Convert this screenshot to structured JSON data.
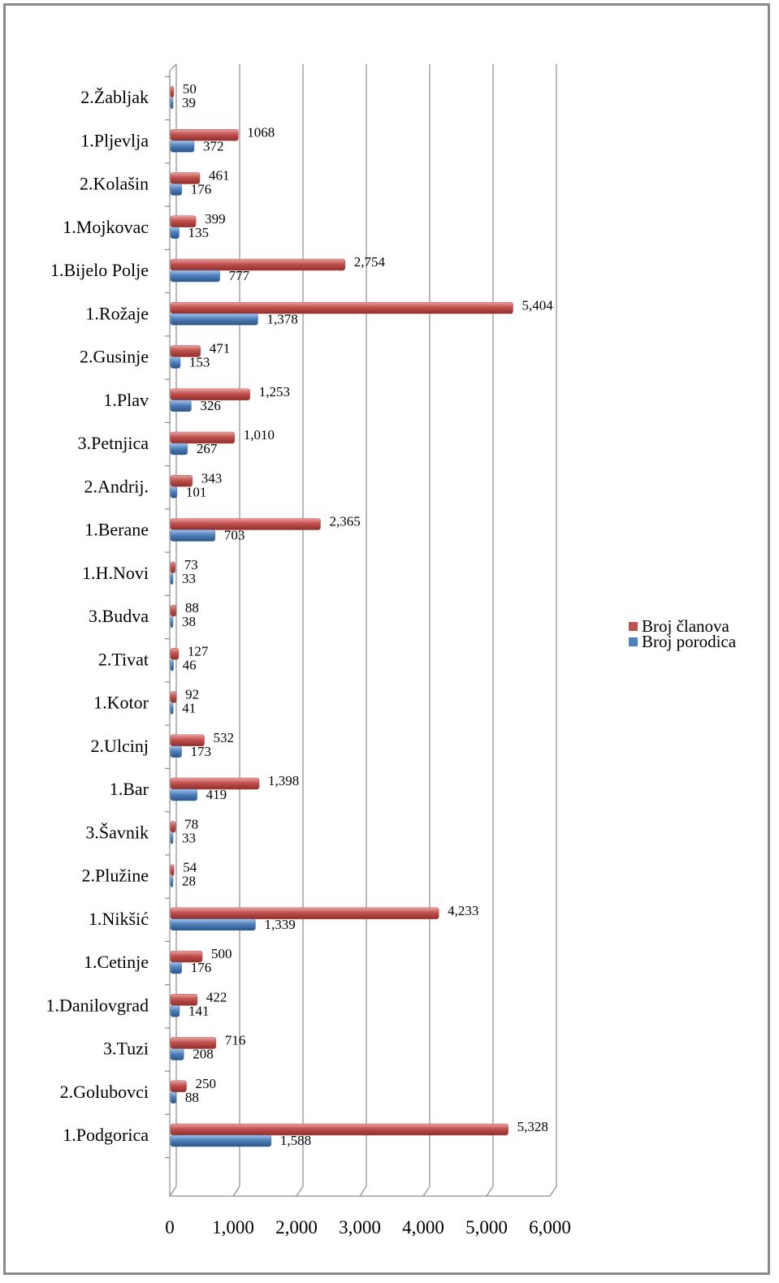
{
  "chart_data": {
    "type": "bar",
    "orientation": "horizontal",
    "categories": [
      "1.Podgorica",
      "2.Golubovci",
      "3.Tuzi",
      "1.Danilovgrad",
      "1.Cetinje",
      "1.Nikšić",
      "2.Plužine",
      "3.Šavnik",
      "1.Bar",
      "2.Ulcinj",
      "1.Kotor",
      "2.Tivat",
      "3.Budva",
      "1.H.Novi",
      "1.Berane",
      "2.Andrij.",
      "3.Petnjica",
      "1.Plav",
      "2.Gusinje",
      "1.Rožaje",
      "1.Bijelo Polje",
      "1.Mojkovac",
      "2.Kolašin",
      "1.Pljevlja",
      "2.Žabljak"
    ],
    "series": [
      {
        "name": "Broj članova",
        "color": "#c0504d",
        "values": [
          5328,
          250,
          716,
          422,
          500,
          4233,
          54,
          78,
          1398,
          532,
          92,
          127,
          88,
          73,
          2365,
          343,
          1010,
          1253,
          471,
          5404,
          2754,
          399,
          461,
          1068,
          50
        ],
        "labels": [
          "5,328",
          "250",
          "716",
          "422",
          "500",
          "4,233",
          "54",
          "78",
          "1,398",
          "532",
          "92",
          "127",
          "88",
          "73",
          "2,365",
          "343",
          "1,010",
          "1,253",
          "471",
          "5,404",
          "2,754",
          "399",
          "461",
          "1068",
          "50"
        ]
      },
      {
        "name": "Broj porodica",
        "color": "#4f81bd",
        "values": [
          1588,
          88,
          208,
          141,
          176,
          1339,
          28,
          33,
          419,
          173,
          41,
          46,
          38,
          33,
          703,
          101,
          267,
          326,
          153,
          1378,
          777,
          135,
          176,
          372,
          39
        ],
        "labels": [
          "1,588",
          "88",
          "208",
          "141",
          "176",
          "1,339",
          "28",
          "33",
          "419",
          "173",
          "41",
          "46",
          "38",
          "33",
          "703",
          "101",
          "267",
          "326",
          "153",
          "1,378",
          "777",
          "135",
          "176",
          "372",
          "39"
        ]
      }
    ],
    "x_ticks": [
      "0",
      "1,000",
      "2,000",
      "3,000",
      "4,000",
      "5,000",
      "6,000"
    ],
    "xlim": [
      0,
      6000
    ],
    "grid": true,
    "legend": "right",
    "style": "3d-clustered-bar"
  }
}
